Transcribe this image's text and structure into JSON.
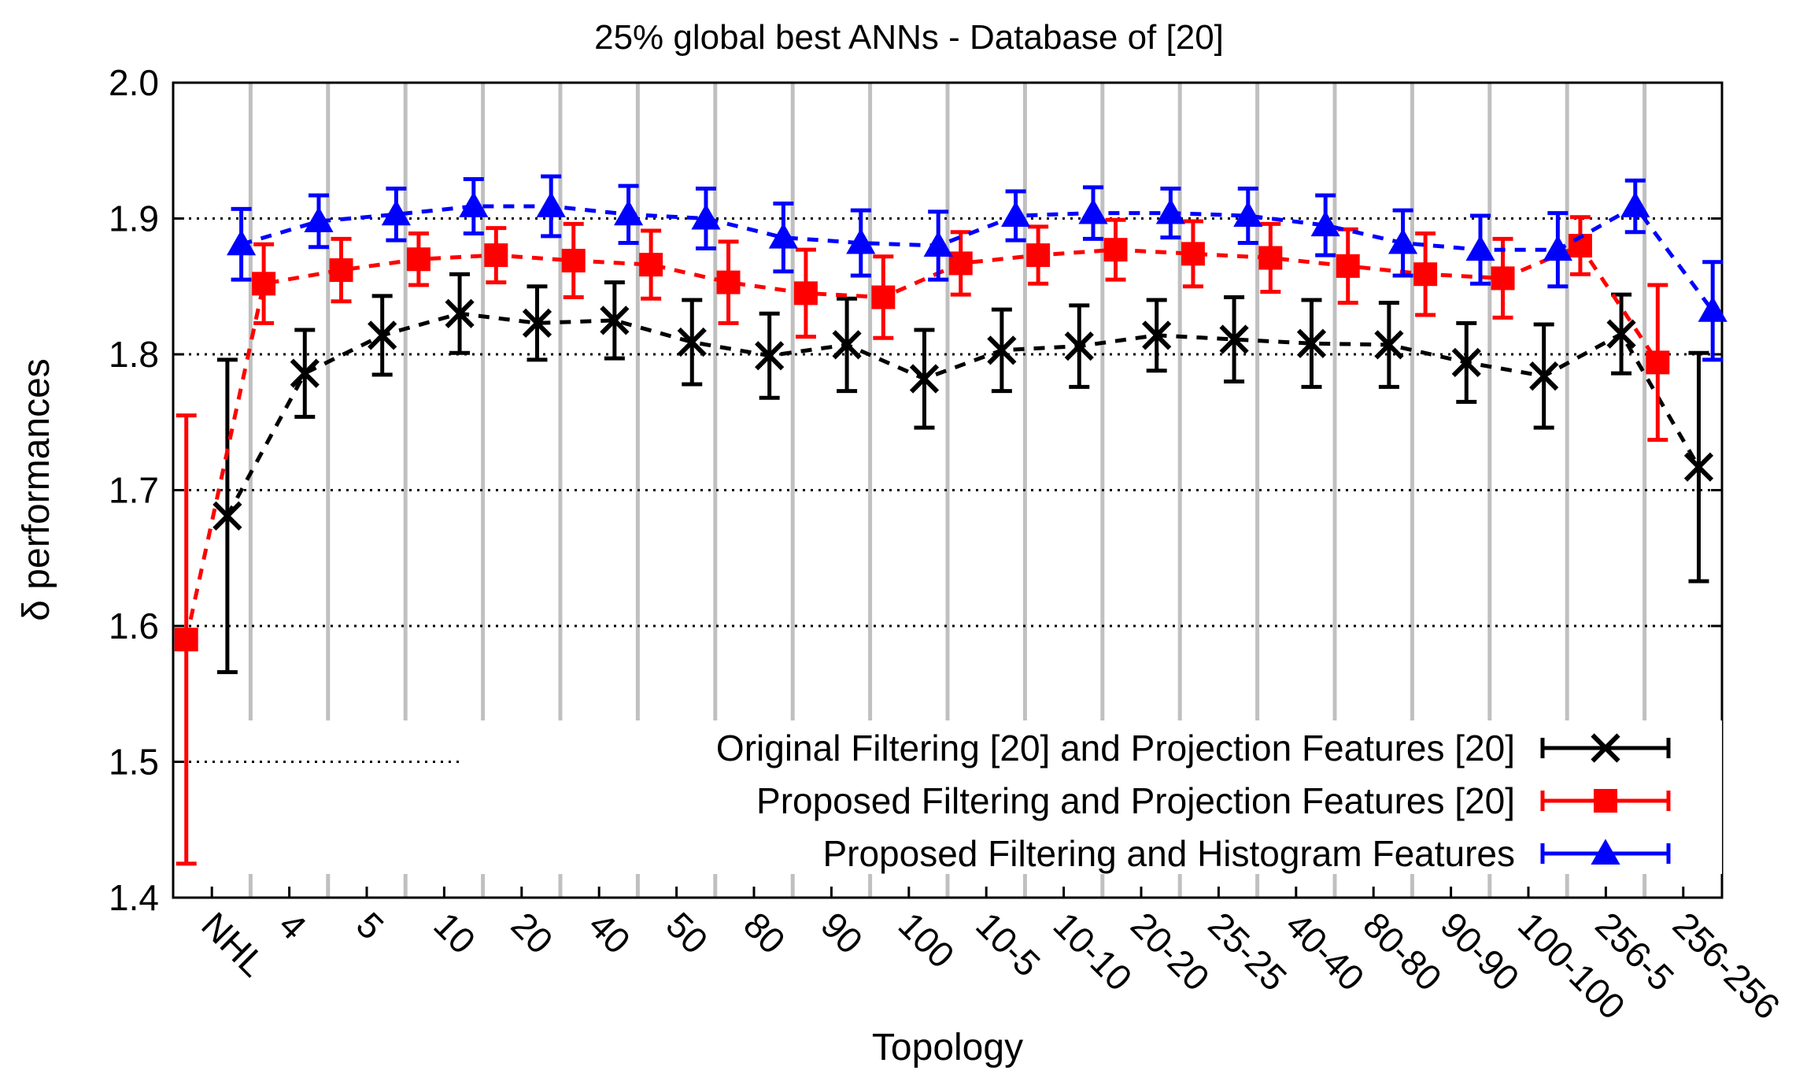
{
  "chart_data": {
    "type": "line",
    "title": "25% global best ANNs - Database of [20]",
    "xlabel": "Topology",
    "ylabel": "δ performances",
    "ylim": [
      1.4,
      2.0
    ],
    "yticks": [
      "1.4",
      "1.5",
      "1.6",
      "1.7",
      "1.8",
      "1.9",
      "2.0"
    ],
    "grid": true,
    "legend_position": "bottom-right",
    "categories": [
      "NHL",
      "4",
      "5",
      "10",
      "20",
      "40",
      "50",
      "80",
      "90",
      "100",
      "10-5",
      "10-10",
      "20-20",
      "25-25",
      "40-40",
      "80-80",
      "90-90",
      "100-100",
      "256-5",
      "256-256"
    ],
    "series": [
      {
        "name": "Original Filtering [20] and Projection Features [20]",
        "color": "#000000",
        "marker": "cross",
        "values": [
          1.681,
          1.786,
          1.814,
          1.83,
          1.823,
          1.825,
          1.809,
          1.799,
          1.807,
          1.782,
          1.803,
          1.806,
          1.814,
          1.811,
          1.808,
          1.807,
          1.794,
          1.784,
          1.815,
          1.717
        ],
        "errors": [
          0.115,
          0.032,
          0.029,
          0.029,
          0.027,
          0.028,
          0.031,
          0.031,
          0.034,
          0.036,
          0.03,
          0.03,
          0.026,
          0.031,
          0.032,
          0.031,
          0.029,
          0.038,
          0.029,
          0.084
        ]
      },
      {
        "name": "Proposed Filtering and Projection Features [20]",
        "color": "#ff0000",
        "marker": "square",
        "values": [
          1.59,
          1.852,
          1.862,
          1.87,
          1.873,
          1.869,
          1.866,
          1.853,
          1.845,
          1.842,
          1.867,
          1.873,
          1.877,
          1.874,
          1.871,
          1.865,
          1.859,
          1.856,
          1.88,
          1.794
        ],
        "errors": [
          0.165,
          0.029,
          0.023,
          0.019,
          0.02,
          0.027,
          0.025,
          0.03,
          0.032,
          0.03,
          0.023,
          0.021,
          0.022,
          0.024,
          0.025,
          0.027,
          0.03,
          0.029,
          0.021,
          0.057
        ]
      },
      {
        "name": "Proposed Filtering and Histogram Features",
        "color": "#0000ff",
        "marker": "triangle",
        "values": [
          1.881,
          1.898,
          1.903,
          1.909,
          1.909,
          1.903,
          1.9,
          1.886,
          1.882,
          1.88,
          1.902,
          1.904,
          1.904,
          1.902,
          1.895,
          1.882,
          1.877,
          1.877,
          1.909,
          1.832
        ],
        "errors": [
          0.026,
          0.019,
          0.019,
          0.02,
          0.022,
          0.021,
          0.022,
          0.025,
          0.024,
          0.025,
          0.018,
          0.019,
          0.018,
          0.02,
          0.022,
          0.024,
          0.025,
          0.027,
          0.019,
          0.036
        ]
      }
    ]
  }
}
